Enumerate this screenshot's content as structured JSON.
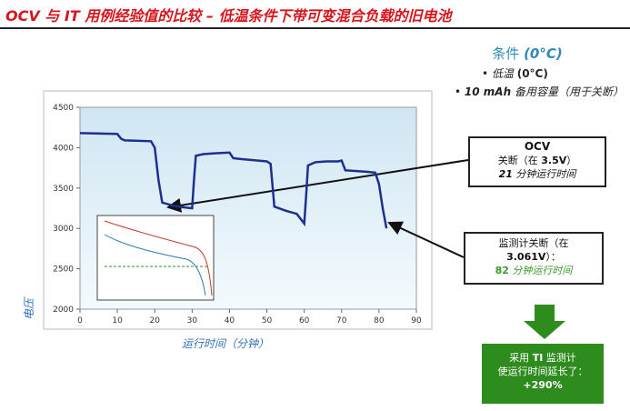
{
  "chart_data": {
    "type": "line",
    "title": "OCV 与 IT 用例经验值的比较 – 低温条件下带可变混合负载的旧电池",
    "x_label": "运行时间（分钟）",
    "y_label": "电压",
    "xlim": [
      0,
      90
    ],
    "xticks": [
      0,
      10,
      20,
      30,
      40,
      50,
      60,
      70,
      80,
      90
    ],
    "ylim": [
      2000,
      4500
    ],
    "yticks": [
      2000,
      2500,
      3000,
      3500,
      4000,
      4500
    ],
    "series": [
      {
        "color": "#1f2f8f",
        "x": [
          0,
          10,
          11,
          12,
          19,
          20,
          21,
          22,
          25,
          28,
          30,
          30.5,
          31,
          33,
          36,
          40,
          41,
          43,
          50,
          51,
          52,
          55,
          58,
          60,
          60.5,
          61,
          63,
          66,
          69,
          70,
          71,
          74,
          77,
          79,
          80,
          81,
          82
        ],
        "values": [
          4180,
          4170,
          4110,
          4090,
          4080,
          4000,
          3600,
          3320,
          3280,
          3260,
          3250,
          3600,
          3900,
          3920,
          3930,
          3940,
          3870,
          3860,
          3830,
          3800,
          3270,
          3220,
          3180,
          3060,
          3400,
          3780,
          3820,
          3830,
          3830,
          3840,
          3720,
          3710,
          3700,
          3690,
          3550,
          3250,
          3000
        ]
      }
    ],
    "conditions": {
      "heading": "条件",
      "heading_temp": "(0°C)",
      "item1": [
        "• 低温 ",
        "(0°C)"
      ],
      "item2": [
        "• ",
        "10 mAh",
        " 备用容量（用于关断）"
      ]
    },
    "ocv_box": {
      "title": "OCV",
      "line2": [
        "关断（在 ",
        "3.5V",
        "）"
      ],
      "line3": [
        "21",
        " 分钟运行时间"
      ]
    },
    "gauge_box": {
      "line1": "监测计关断（在",
      "line2": [
        "3.061V",
        "）："
      ],
      "line3": [
        "82",
        " 分钟运行时间"
      ]
    },
    "result_box": {
      "line1": [
        "采用 ",
        "TI",
        " 监测计"
      ],
      "line2": "使运行时间延长了：",
      "line3": "+290%"
    }
  }
}
